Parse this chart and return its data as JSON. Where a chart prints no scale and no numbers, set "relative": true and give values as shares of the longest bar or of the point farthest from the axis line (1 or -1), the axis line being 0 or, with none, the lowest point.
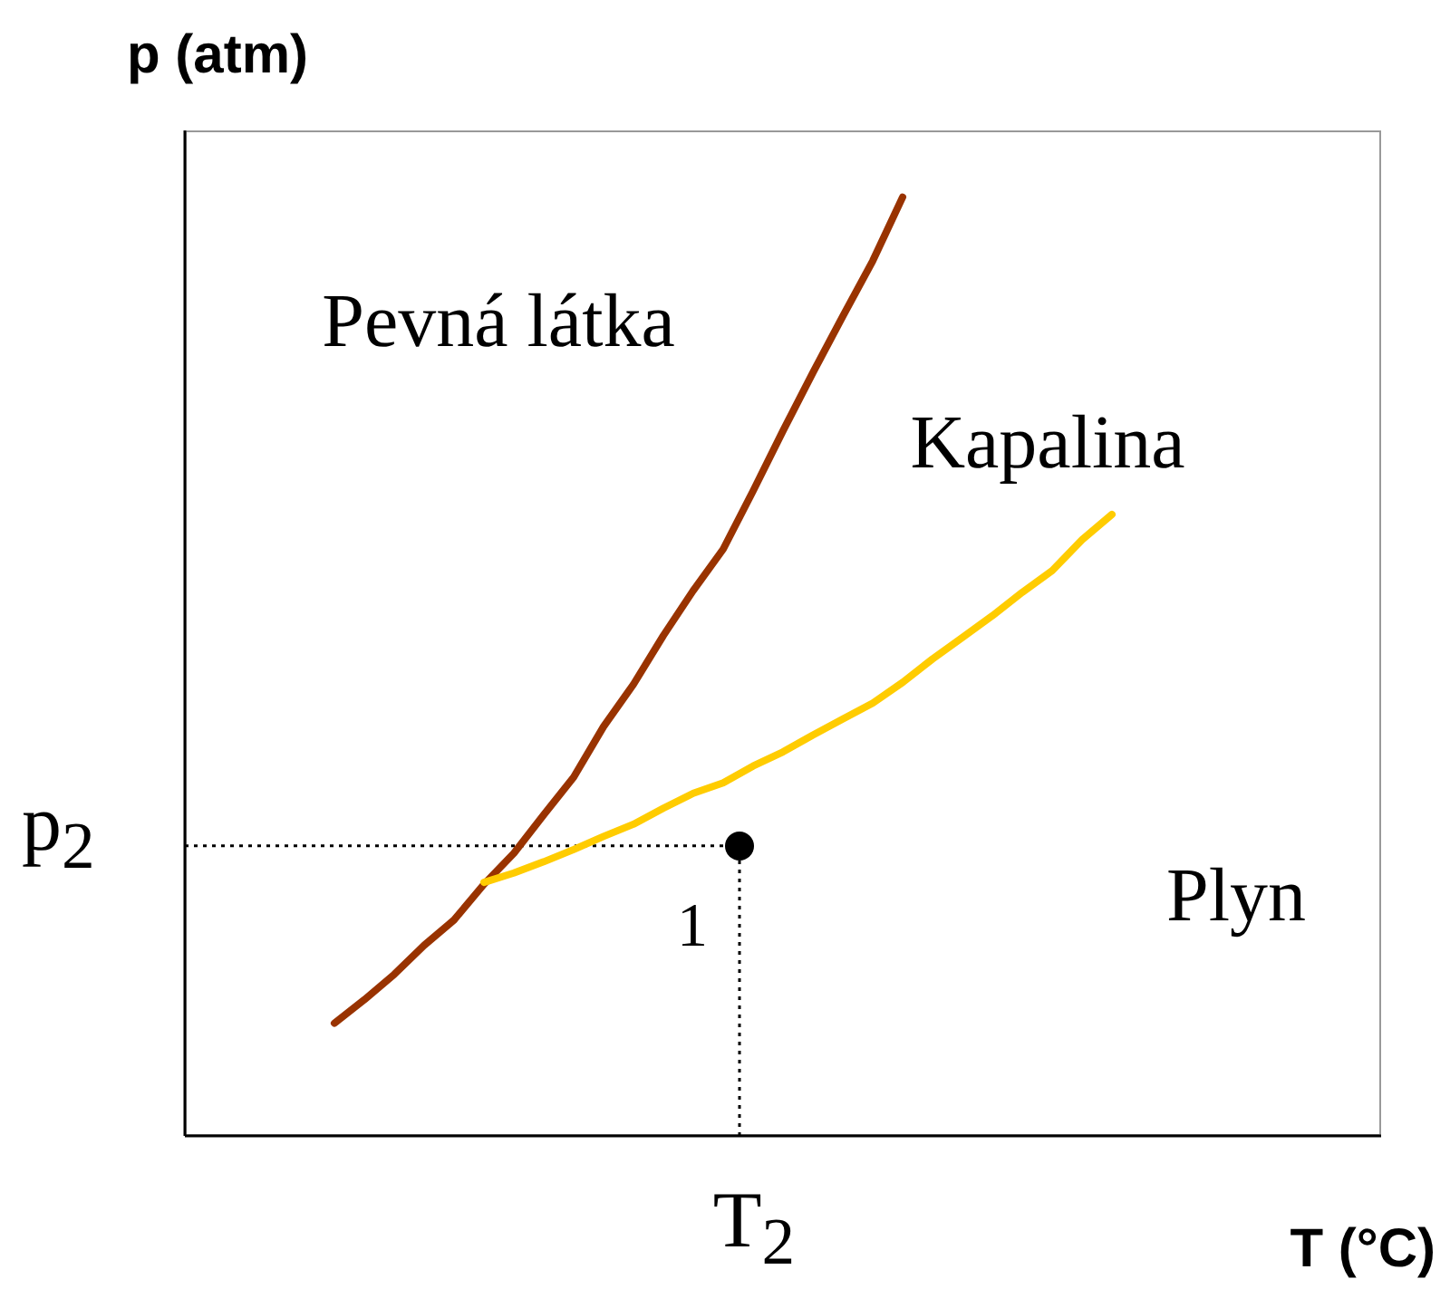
{
  "chart_data": {
    "type": "line",
    "relative": true,
    "xlabel": "T (°C)",
    "ylabel": "p (atm)",
    "categories": [
      null,
      null,
      null,
      null,
      null,
      null,
      null,
      null,
      null,
      null,
      null,
      null,
      null,
      null,
      null,
      null,
      null,
      null,
      null,
      null,
      null,
      null,
      null,
      null,
      null,
      null,
      null,
      null,
      null,
      null,
      null,
      null,
      null,
      null,
      null,
      null,
      null,
      null,
      null,
      null,
      null
    ],
    "series": [
      {
        "color": "#993300",
        "values": [
          null,
          null,
          null,
          null,
          null,
          0.12,
          0.145,
          0.172,
          0.203,
          0.23,
          0.268,
          0.301,
          0.342,
          0.382,
          0.436,
          0.481,
          0.533,
          0.581,
          0.625,
          0.687,
          0.751,
          0.813,
          0.873,
          0.932,
          1,
          null,
          null,
          null,
          null,
          null,
          null,
          null,
          null,
          null,
          null,
          null,
          null,
          null,
          null,
          null,
          null
        ]
      },
      {
        "color": "#ffcc00",
        "values": [
          null,
          null,
          null,
          null,
          null,
          null,
          null,
          null,
          null,
          null,
          0.27,
          0.28,
          0.292,
          0.305,
          0.319,
          0.332,
          0.349,
          0.365,
          0.376,
          0.394,
          0.409,
          0.427,
          0.444,
          0.461,
          0.483,
          0.508,
          0.531,
          0.554,
          0.579,
          0.602,
          0.635,
          0.662,
          null,
          null,
          null,
          null,
          null,
          null,
          null,
          null,
          null
        ]
      }
    ],
    "ref_lines": [
      {
        "axis": "y",
        "value": 0.309,
        "label": "p$_{2}$",
        "line_style": "dotted",
        "color": "#000000"
      }
    ],
    "annotations": [
      "Pevná látka",
      "Kapalina",
      "Plyn",
      "1",
      "T$_{2}$"
    ],
    "marker": "none",
    "line_style": "solid",
    "grid": false,
    "legend": false,
    "tick_labels": false
  }
}
